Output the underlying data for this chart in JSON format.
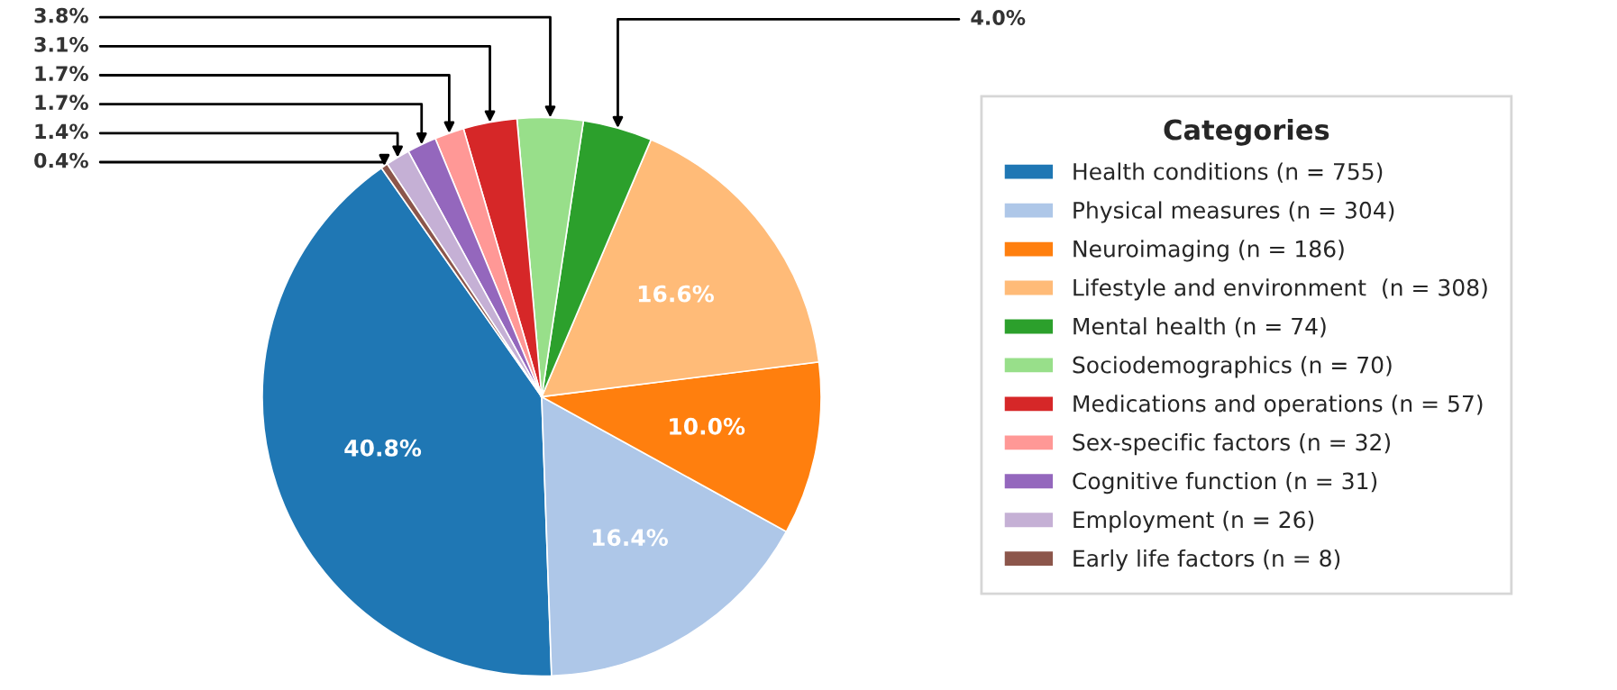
{
  "chart_data": {
    "type": "pie",
    "legend_title": "Categories",
    "categories": [
      "Health conditions (n = 755)",
      "Physical measures (n = 304)",
      "Neuroimaging (n = 186)",
      "Lifestyle and environment  (n = 308)",
      "Mental health (n = 74)",
      "Sociodemographics (n = 70)",
      "Medications and operations (n = 57)",
      "Sex-specific factors (n = 32)",
      "Cognitive function (n = 31)",
      "Employment (n = 26)",
      "Early life factors (n = 8)"
    ],
    "values": [
      40.8,
      16.4,
      10.0,
      16.6,
      4.0,
      3.8,
      3.1,
      1.7,
      1.7,
      1.4,
      0.4
    ],
    "colors": [
      "#1f77b4",
      "#aec7e8",
      "#ff7f0e",
      "#ffbb78",
      "#2ca02c",
      "#98df8a",
      "#d62728",
      "#ff9896",
      "#9467bd",
      "#c5b0d5",
      "#8c564b"
    ],
    "value_labels": [
      "40.8%",
      "16.4%",
      "10.0%",
      "16.6%",
      "4.0%",
      "3.8%",
      "3.1%",
      "1.7%",
      "1.7%",
      "1.4%",
      "0.4%"
    ],
    "legend": "right"
  }
}
